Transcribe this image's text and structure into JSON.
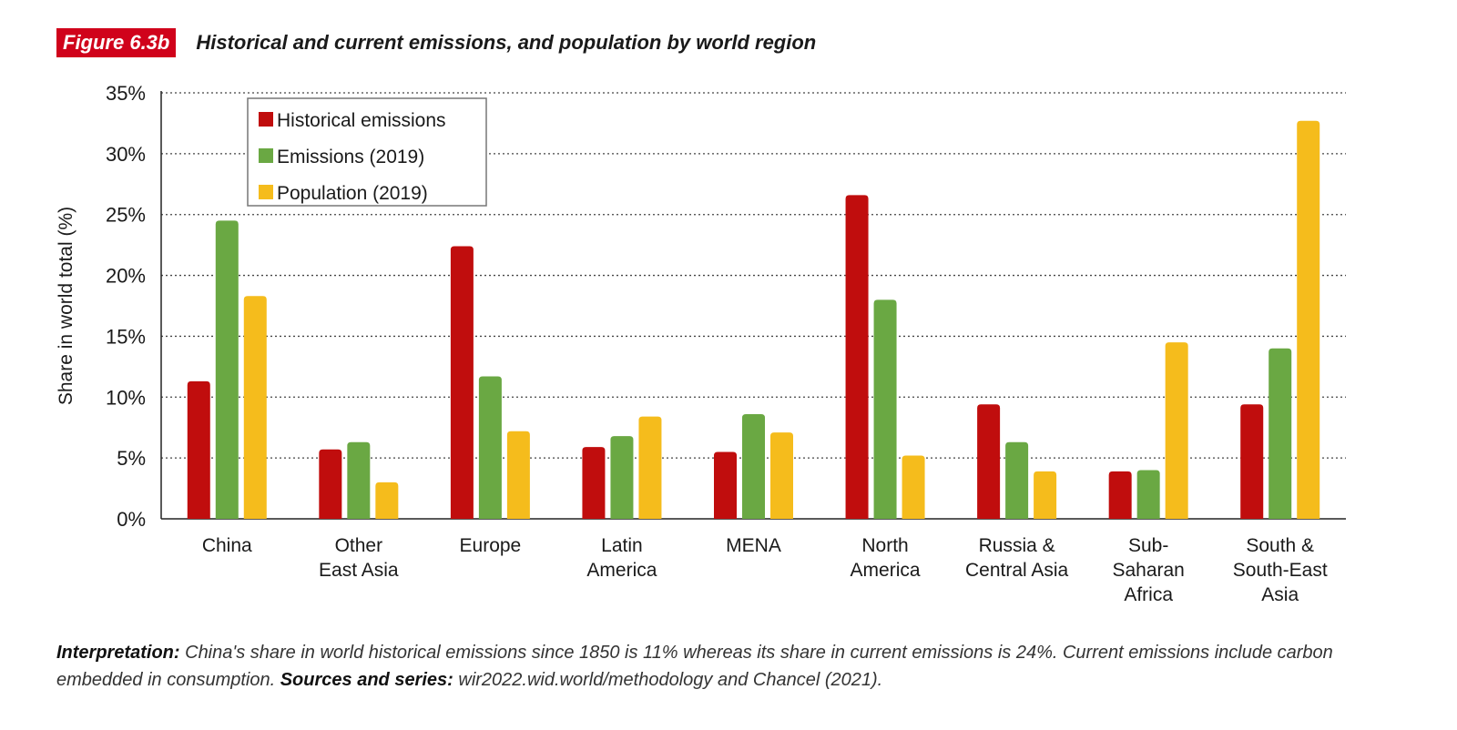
{
  "header": {
    "figure_tag": "Figure 6.3b",
    "title": "Historical and current emissions, and population by world region"
  },
  "chart_data": {
    "type": "bar",
    "title": "Historical and current emissions, and population by world region",
    "xlabel": "",
    "ylabel": "Share in world total (%)",
    "ylim": [
      0,
      35
    ],
    "yticks": [
      "0%",
      "5%",
      "10%",
      "15%",
      "20%",
      "25%",
      "30%",
      "35%"
    ],
    "grid": true,
    "legend_position": "top-left",
    "categories": [
      [
        "China"
      ],
      [
        "Other",
        "East Asia"
      ],
      [
        "Europe"
      ],
      [
        "Latin",
        "America"
      ],
      [
        "MENA"
      ],
      [
        "North",
        "America"
      ],
      [
        "Russia &",
        "Central Asia"
      ],
      [
        "Sub-",
        "Saharan",
        "Africa"
      ],
      [
        "South &",
        "South-East",
        "Asia"
      ]
    ],
    "series": [
      {
        "name": "Historical emissions",
        "color": "#c00d0d",
        "values": [
          11.3,
          5.7,
          22.4,
          5.9,
          5.5,
          26.6,
          9.4,
          3.9,
          9.4
        ]
      },
      {
        "name": "Emissions (2019)",
        "color": "#6aa843",
        "values": [
          24.5,
          6.3,
          11.7,
          6.8,
          8.6,
          18.0,
          6.3,
          4.0,
          14.0
        ]
      },
      {
        "name": "Population (2019)",
        "color": "#f5bc1c",
        "values": [
          18.3,
          3.0,
          7.2,
          8.4,
          7.1,
          5.2,
          3.9,
          14.5,
          32.7
        ]
      }
    ]
  },
  "footer": {
    "interpretation_label": "Interpretation:",
    "interpretation_text": " China's share in world historical emissions since 1850 is 11% whereas its share in current emissions is 24%. Current emissions include carbon embedded in consumption.",
    "sources_label": "Sources and series:",
    "sources_text": " wir2022.wid.world/methodology and Chancel (2021)."
  }
}
